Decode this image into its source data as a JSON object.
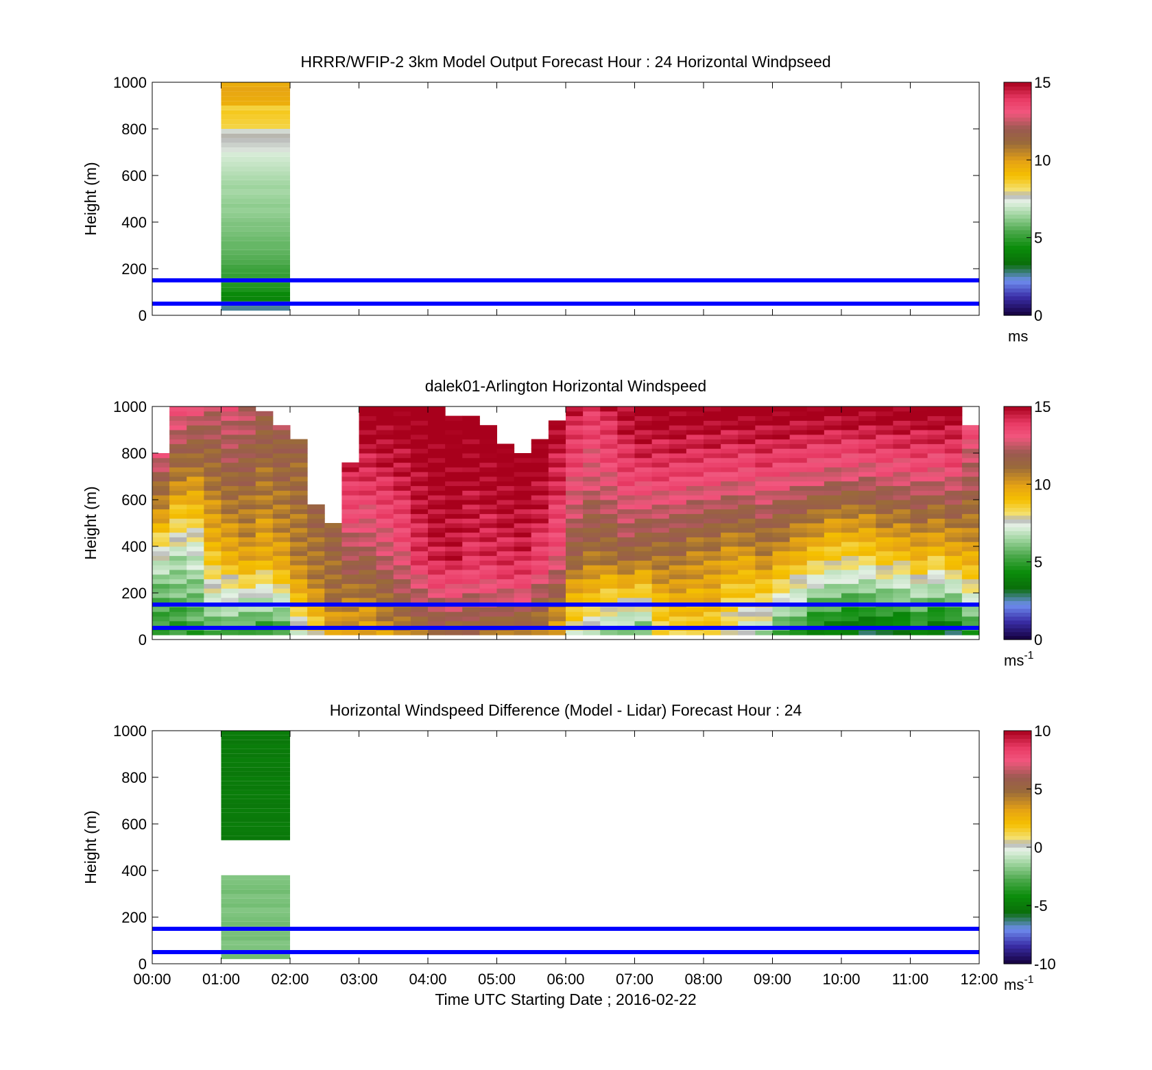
{
  "figure": {
    "x_tick_labels": [
      "00:00",
      "01:00",
      "02:00",
      "03:00",
      "04:00",
      "05:00",
      "06:00",
      "07:00",
      "08:00",
      "09:00",
      "10:00",
      "11:00",
      "12:00"
    ],
    "xlabel": "Time UTC  Starting Date ; 2016-02-22",
    "height_ticks": [
      "0",
      "200",
      "400",
      "600",
      "800",
      "1000"
    ],
    "ylabel": "Height (m)",
    "reference_line_color": "#0000ff",
    "reference_heights_m": [
      50,
      150
    ]
  },
  "chart_data": [
    {
      "type": "heatmap",
      "title": "HRRR/WFIP-2 3km Model Output   Forecast Hour : 24 Horizontal Windpseed",
      "ylabel": "Height (m)",
      "xlim_hours": [
        0,
        12
      ],
      "ylim": [
        0,
        1000
      ],
      "grid": false,
      "colorbar": {
        "ticks": [
          "15",
          "10",
          "5",
          "0"
        ],
        "range": [
          0,
          15
        ],
        "unit": "ms",
        "unit_sup": ""
      },
      "model_column": {
        "time_start_h": 1.0,
        "time_end_h": 2.0,
        "levels": [
          {
            "z0": 20,
            "z1": 60,
            "value": 2.8
          },
          {
            "z0": 60,
            "z1": 100,
            "value": 4.3
          },
          {
            "z0": 100,
            "z1": 160,
            "value": 4.8
          },
          {
            "z0": 160,
            "z1": 220,
            "value": 5.2
          },
          {
            "z0": 220,
            "z1": 300,
            "value": 5.6
          },
          {
            "z0": 300,
            "z1": 380,
            "value": 5.9
          },
          {
            "z0": 380,
            "z1": 460,
            "value": 6.2
          },
          {
            "z0": 460,
            "z1": 540,
            "value": 6.4
          },
          {
            "z0": 540,
            "z1": 620,
            "value": 6.6
          },
          {
            "z0": 620,
            "z1": 700,
            "value": 7.0
          },
          {
            "z0": 700,
            "z1": 800,
            "value": 7.6
          },
          {
            "z0": 800,
            "z1": 900,
            "value": 8.6
          },
          {
            "z0": 900,
            "z1": 1000,
            "value": 9.7
          }
        ]
      }
    },
    {
      "type": "heatmap",
      "title": "dalek01-Arlington  Horizontal Windspeed",
      "ylabel": "Height (m)",
      "xlim_hours": [
        0,
        12
      ],
      "ylim": [
        0,
        1000
      ],
      "grid": false,
      "colorbar": {
        "ticks": [
          "15",
          "10",
          "5",
          "0"
        ],
        "range": [
          0,
          15
        ],
        "unit": "ms",
        "unit_sup": "-1"
      },
      "lidar_profiles": {
        "time_step_h": 0.25,
        "columns": [
          {
            "t": 0.0,
            "top": 800,
            "low": 4.5,
            "mid": 6.5,
            "high": 13.0
          },
          {
            "t": 0.25,
            "top": 1000,
            "low": 4.8,
            "mid": 6.8,
            "high": 13.5
          },
          {
            "t": 0.5,
            "top": 1000,
            "low": 5.0,
            "mid": 7.0,
            "high": 13.0
          },
          {
            "t": 0.75,
            "top": 1000,
            "low": 5.2,
            "mid": 9.0,
            "high": 12.5
          },
          {
            "t": 1.0,
            "top": 1000,
            "low": 5.0,
            "mid": 9.5,
            "high": 13.0
          },
          {
            "t": 1.25,
            "top": 1000,
            "low": 4.6,
            "mid": 10.0,
            "high": 12.5
          },
          {
            "t": 1.5,
            "top": 980,
            "low": 4.5,
            "mid": 9.5,
            "high": 12.0
          },
          {
            "t": 1.75,
            "top": 920,
            "low": 4.6,
            "mid": 9.8,
            "high": 12.0
          },
          {
            "t": 2.0,
            "top": 850,
            "low": 7.2,
            "mid": 10.5,
            "high": 11.5
          },
          {
            "t": 2.25,
            "top": 580,
            "low": 7.8,
            "mid": 10.5,
            "high": 11.5
          },
          {
            "t": 2.5,
            "top": 490,
            "low": 9.5,
            "mid": 11.0,
            "high": 11.5
          },
          {
            "t": 2.75,
            "top": 760,
            "low": 9.5,
            "mid": 11.5,
            "high": 14.5
          },
          {
            "t": 3.0,
            "top": 990,
            "low": 9.5,
            "mid": 12.0,
            "high": 15.5
          },
          {
            "t": 3.25,
            "top": 1000,
            "low": 10.0,
            "mid": 12.5,
            "high": 15.5
          },
          {
            "t": 3.5,
            "top": 1000,
            "low": 10.5,
            "mid": 13.0,
            "high": 15.5
          },
          {
            "t": 3.75,
            "top": 1000,
            "low": 10.5,
            "mid": 14.0,
            "high": 15.5
          },
          {
            "t": 4.0,
            "top": 990,
            "low": 11.0,
            "mid": 14.5,
            "high": 15.5
          },
          {
            "t": 4.25,
            "top": 950,
            "low": 11.0,
            "mid": 14.5,
            "high": 15.5
          },
          {
            "t": 4.5,
            "top": 960,
            "low": 11.0,
            "mid": 14.0,
            "high": 15.5
          },
          {
            "t": 4.75,
            "top": 920,
            "low": 11.0,
            "mid": 14.0,
            "high": 15.5
          },
          {
            "t": 5.0,
            "top": 840,
            "low": 10.5,
            "mid": 14.0,
            "high": 15.5
          },
          {
            "t": 5.25,
            "top": 800,
            "low": 10.5,
            "mid": 14.0,
            "high": 15.5
          },
          {
            "t": 5.5,
            "top": 860,
            "low": 10.0,
            "mid": 13.5,
            "high": 15.5
          },
          {
            "t": 5.75,
            "top": 940,
            "low": 9.5,
            "mid": 13.0,
            "high": 15.0
          },
          {
            "t": 6.0,
            "top": 1000,
            "low": 7.5,
            "mid": 11.5,
            "high": 14.5
          },
          {
            "t": 6.25,
            "top": 1000,
            "low": 7.0,
            "mid": 11.0,
            "high": 14.0
          },
          {
            "t": 6.5,
            "top": 1000,
            "low": 6.0,
            "mid": 11.0,
            "high": 14.5
          },
          {
            "t": 6.75,
            "top": 1000,
            "low": 5.5,
            "mid": 11.5,
            "high": 15.0
          },
          {
            "t": 7.0,
            "top": 1000,
            "low": 5.5,
            "mid": 11.0,
            "high": 15.5
          },
          {
            "t": 7.25,
            "top": 1000,
            "low": 8.0,
            "mid": 11.0,
            "high": 15.5
          },
          {
            "t": 7.5,
            "top": 1000,
            "low": 8.5,
            "mid": 11.0,
            "high": 15.5
          },
          {
            "t": 7.75,
            "top": 1000,
            "low": 8.5,
            "mid": 10.5,
            "high": 15.5
          },
          {
            "t": 8.0,
            "top": 1000,
            "low": 8.5,
            "mid": 10.5,
            "high": 15.5
          },
          {
            "t": 8.25,
            "top": 1000,
            "low": 7.5,
            "mid": 10.0,
            "high": 15.5
          },
          {
            "t": 8.5,
            "top": 1000,
            "low": 7.0,
            "mid": 10.0,
            "high": 15.5
          },
          {
            "t": 8.75,
            "top": 1000,
            "low": 6.5,
            "mid": 10.5,
            "high": 15.5
          },
          {
            "t": 9.0,
            "top": 1000,
            "low": 5.0,
            "mid": 10.0,
            "high": 15.5
          },
          {
            "t": 9.25,
            "top": 1000,
            "low": 4.5,
            "mid": 9.5,
            "high": 15.5
          },
          {
            "t": 9.5,
            "top": 1000,
            "low": 3.5,
            "mid": 9.0,
            "high": 15.5
          },
          {
            "t": 9.75,
            "top": 1000,
            "low": 3.5,
            "mid": 8.5,
            "high": 15.5
          },
          {
            "t": 10.0,
            "top": 1000,
            "low": 3.0,
            "mid": 8.5,
            "high": 15.5
          },
          {
            "t": 10.25,
            "top": 1000,
            "low": 3.0,
            "mid": 8.5,
            "high": 15.5
          },
          {
            "t": 10.5,
            "top": 1000,
            "low": 3.0,
            "mid": 9.0,
            "high": 15.5
          },
          {
            "t": 10.75,
            "top": 1000,
            "low": 3.0,
            "mid": 9.0,
            "high": 15.5
          },
          {
            "t": 11.0,
            "top": 1000,
            "low": 3.5,
            "mid": 9.5,
            "high": 15.5
          },
          {
            "t": 11.25,
            "top": 1000,
            "low": 3.0,
            "mid": 9.0,
            "high": 15.5
          },
          {
            "t": 11.5,
            "top": 1000,
            "low": 3.0,
            "mid": 9.5,
            "high": 15.5
          },
          {
            "t": 11.75,
            "top": 920,
            "low": 4.5,
            "mid": 9.5,
            "high": 13.5
          }
        ]
      }
    },
    {
      "type": "heatmap",
      "title": "Horizontal Windspeed Difference (Model - Lidar) Forecast Hour : 24",
      "ylabel": "Height (m)",
      "xlabel": "Time UTC  Starting Date ; 2016-02-22",
      "xlim_hours": [
        0,
        12
      ],
      "ylim": [
        0,
        1000
      ],
      "grid": false,
      "colorbar": {
        "ticks": [
          "10",
          "5",
          "0",
          "-5",
          "-10"
        ],
        "range": [
          -10,
          10
        ],
        "unit": "ms",
        "unit_sup": "-1"
      },
      "model_column": {
        "time_start_h": 1.0,
        "time_end_h": 2.0,
        "levels": [
          {
            "z0": 20,
            "z1": 380,
            "value": -2.0
          },
          {
            "z0": 530,
            "z1": 1000,
            "value": -5.0
          }
        ]
      }
    }
  ]
}
